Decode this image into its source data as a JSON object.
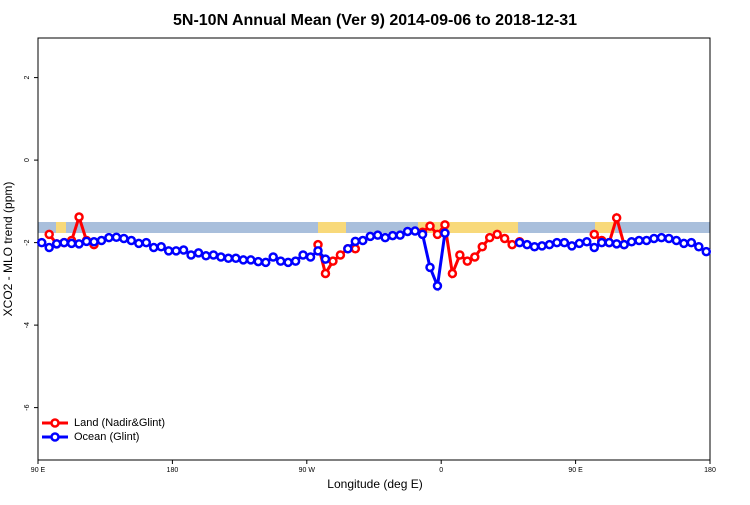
{
  "chart_data": {
    "type": "line",
    "title": "5N-10N Annual Mean (Ver 9)   2014-09-06 to 2018-12-31",
    "x_label": "Longitude (deg E)",
    "y_label": "XCO2 - MLO trend (ppm)",
    "x": [
      92.5,
      97.5,
      102.5,
      107.5,
      112.5,
      117.5,
      122.5,
      127.5,
      132.5,
      137.5,
      142.5,
      147.5,
      152.5,
      157.5,
      162.5,
      167.5,
      172.5,
      177.5,
      182.5,
      187.5,
      192.5,
      197.5,
      202.5,
      207.5,
      212.5,
      217.5,
      222.5,
      227.5,
      232.5,
      237.5,
      242.5,
      247.5,
      252.5,
      257.5,
      262.5,
      267.5,
      272.5,
      277.5,
      282.5,
      287.5,
      292.5,
      297.5,
      302.5,
      307.5,
      312.5,
      317.5,
      322.5,
      327.5,
      332.5,
      337.5,
      342.5,
      347.5,
      352.5,
      357.5,
      362.5,
      367.5,
      372.5,
      377.5,
      382.5,
      387.5,
      392.5,
      397.5,
      402.5,
      407.5,
      412.5,
      417.5,
      422.5,
      427.5,
      432.5,
      437.5,
      442.5,
      447.5,
      452.5,
      457.5,
      462.5,
      467.5,
      472.5,
      477.5,
      482.5,
      487.5,
      492.5,
      497.5,
      502.5,
      507.5,
      512.5,
      517.5,
      522.5,
      527.5,
      532.5,
      537.5
    ],
    "series": [
      {
        "name": "Land (Nadir&Glint)",
        "color": "#ff0000",
        "values": [
          null,
          -1.8,
          -2.03,
          -2.0,
          -1.95,
          -1.38,
          -1.95,
          -2.05,
          null,
          null,
          null,
          null,
          null,
          null,
          null,
          null,
          null,
          null,
          null,
          null,
          null,
          null,
          null,
          null,
          null,
          null,
          null,
          null,
          null,
          null,
          null,
          null,
          null,
          null,
          null,
          null,
          null,
          -2.05,
          -2.75,
          -2.45,
          -2.3,
          -2.15,
          -2.15,
          null,
          null,
          null,
          null,
          null,
          null,
          null,
          null,
          -1.75,
          -1.6,
          -1.8,
          -1.57,
          -2.75,
          -2.3,
          -2.45,
          -2.35,
          -2.1,
          -1.88,
          -1.8,
          -1.9,
          -2.05,
          -1.98,
          null,
          null,
          null,
          null,
          null,
          null,
          null,
          null,
          null,
          -1.8,
          -1.95,
          -2.0,
          -1.4,
          -2.05,
          null,
          null,
          null,
          null,
          null,
          null,
          null,
          null,
          null,
          null,
          null
        ]
      },
      {
        "name": "Ocean (Glint)",
        "color": "#0000ff",
        "values": [
          -2.0,
          -2.12,
          -2.03,
          -2.0,
          -2.02,
          -2.03,
          -1.97,
          -1.98,
          -1.95,
          -1.88,
          -1.87,
          -1.9,
          -1.95,
          -2.02,
          -2.0,
          -2.12,
          -2.1,
          -2.2,
          -2.2,
          -2.18,
          -2.3,
          -2.25,
          -2.32,
          -2.3,
          -2.35,
          -2.38,
          -2.38,
          -2.42,
          -2.42,
          -2.46,
          -2.48,
          -2.35,
          -2.45,
          -2.48,
          -2.45,
          -2.3,
          -2.35,
          -2.2,
          -2.4,
          null,
          null,
          -2.15,
          -1.97,
          -1.95,
          -1.85,
          -1.82,
          -1.88,
          -1.83,
          -1.82,
          -1.73,
          -1.72,
          -1.8,
          -2.6,
          -3.05,
          -1.77,
          null,
          null,
          null,
          null,
          null,
          null,
          null,
          null,
          null,
          -2.0,
          -2.05,
          -2.1,
          -2.08,
          -2.05,
          -2.0,
          -2.0,
          -2.08,
          -2.02,
          -1.98,
          -2.12,
          -2.0,
          -2.0,
          -2.03,
          -2.05,
          -1.98,
          -1.95,
          -1.95,
          -1.9,
          -1.88,
          -1.9,
          -1.95,
          -2.02,
          -2.0,
          -2.1,
          -2.22
        ]
      }
    ],
    "xlim": [
      90,
      540
    ],
    "xticks": [
      {
        "value": 90,
        "label": "90 E"
      },
      180,
      {
        "value": 270,
        "label": "90 W"
      },
      {
        "value": 360,
        "label": "0"
      },
      {
        "value": 450,
        "label": "90 E"
      },
      {
        "value": 540,
        "label": "180"
      }
    ],
    "ylim": [
      -7.27,
      2.96
    ],
    "yticks": [
      -6,
      -4,
      -2,
      0,
      2
    ],
    "legend": "bottom-left"
  }
}
